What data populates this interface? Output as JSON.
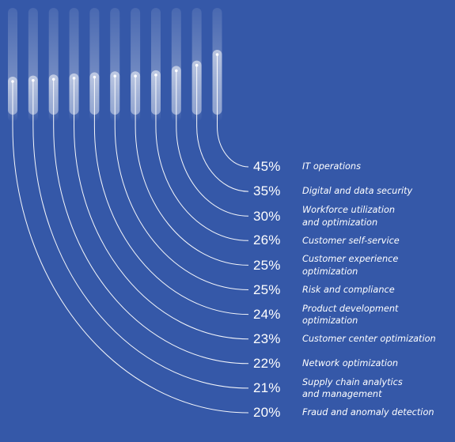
{
  "colors": {
    "background": "#3558a8",
    "line": "#ffffff"
  },
  "chart_data": {
    "type": "bar",
    "title": "",
    "categories": [
      "IT operations",
      "Digital and data security",
      "Workforce utilization and optimization",
      "Customer self-service",
      "Customer experience optimization",
      "Risk and compliance",
      "Product development optimization",
      "Customer center optimization",
      "Network optimization",
      "Supply chain analytics and management",
      "Fraud and anomaly detection"
    ],
    "labels": [
      "IT operations",
      "Digital and data security",
      "Workforce utilization\nand optimization",
      "Customer self-service",
      "Customer experience\noptimization",
      "Risk and compliance",
      "Product development\noptimization",
      "Customer center optimization",
      "Network optimization",
      "Supply chain analytics\nand management",
      "Fraud and anomaly detection"
    ],
    "values": [
      45,
      35,
      30,
      26,
      25,
      25,
      24,
      23,
      22,
      21,
      20
    ],
    "value_labels": [
      "45%",
      "35%",
      "30%",
      "26%",
      "25%",
      "25%",
      "24%",
      "23%",
      "22%",
      "21%",
      "20%"
    ],
    "unit": "%",
    "ylim": [
      0,
      50
    ],
    "grid": false,
    "legend": "none"
  }
}
